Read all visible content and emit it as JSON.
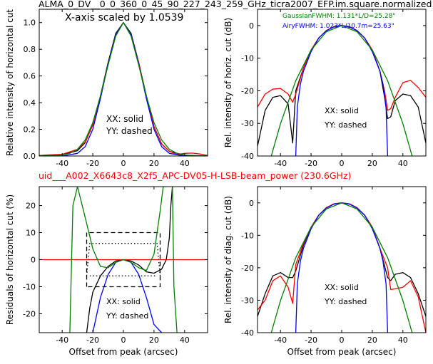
{
  "figure": {
    "title": "ALMA_0_DV__0_0_360_0_45_90_227_243_259_GHz_ticra2007_EFP.im.square.normalized",
    "subtitle": "uid___A002_X6643c8_X2f5_APC-DV05-H-LSB-beam_power (230.6GHz)",
    "subtitle_color": "#ff0000"
  },
  "colors": {
    "black": "#000000",
    "red": "#ff0000",
    "blue": "#0000ff",
    "green": "#008000"
  },
  "chart_data": [
    {
      "id": "p1",
      "type": "line",
      "xlabel": "",
      "ylabel": "Relative intensity of horizontal cut",
      "xlim": [
        -55,
        55
      ],
      "ylim": [
        0,
        1.1
      ],
      "xticks": [
        -40,
        -20,
        0,
        20,
        40
      ],
      "yticks": [
        0.0,
        0.2,
        0.4,
        0.6,
        0.8,
        1.0
      ],
      "ytick_labels": [
        "0.0",
        "0.2",
        "0.4",
        "0.6",
        "0.8",
        "1.0"
      ],
      "annotations": [
        "X-axis scaled by 1.0539",
        "XX: solid",
        "YY: dashed"
      ],
      "series": [
        {
          "color": "#000000",
          "style": "solid",
          "x": [
            -55,
            -50,
            -40,
            -30,
            -25,
            -20,
            -15,
            -10,
            -5,
            0,
            5,
            10,
            15,
            20,
            25,
            30,
            40,
            50,
            55
          ],
          "y": [
            0.0,
            0.002,
            0.008,
            0.04,
            0.1,
            0.235,
            0.45,
            0.7,
            0.92,
            1.0,
            0.92,
            0.7,
            0.45,
            0.22,
            0.09,
            0.035,
            0.006,
            0.002,
            0.0
          ]
        },
        {
          "color": "#ff0000",
          "style": "solid",
          "x": [
            -55,
            -50,
            -40,
            -30,
            -25,
            -20,
            -15,
            -10,
            -5,
            0,
            5,
            10,
            15,
            20,
            25,
            30,
            35,
            40,
            45,
            50,
            55
          ],
          "y": [
            0.004,
            0.008,
            0.013,
            0.05,
            0.105,
            0.23,
            0.44,
            0.69,
            0.91,
            1.0,
            0.91,
            0.7,
            0.44,
            0.22,
            0.09,
            0.035,
            0.012,
            0.02,
            0.022,
            0.015,
            0.005
          ]
        },
        {
          "color": "#0000ff",
          "style": "solid",
          "x": [
            -55,
            -40,
            -30,
            -25,
            -20,
            -15,
            -10,
            -5,
            0,
            5,
            10,
            15,
            20,
            25,
            30,
            40,
            55
          ],
          "y": [
            0.0,
            0.0,
            0.02,
            0.07,
            0.2,
            0.43,
            0.69,
            0.91,
            1.0,
            0.91,
            0.69,
            0.43,
            0.2,
            0.07,
            0.02,
            0.0,
            0.0
          ]
        },
        {
          "color": "#008000",
          "style": "solid",
          "x": [
            -55,
            -45,
            -40,
            -35,
            -30,
            -25,
            -20,
            -15,
            -10,
            -5,
            0,
            5,
            10,
            15,
            20,
            25,
            30,
            35,
            40,
            45,
            55
          ],
          "y": [
            0.0,
            0.004,
            0.008,
            0.02,
            0.05,
            0.12,
            0.25,
            0.45,
            0.68,
            0.9,
            1.0,
            0.9,
            0.68,
            0.45,
            0.25,
            0.12,
            0.05,
            0.02,
            0.008,
            0.004,
            0.0
          ]
        }
      ]
    },
    {
      "id": "p2",
      "type": "line",
      "xlabel": "",
      "ylabel": "Rel. intensity of horiz. cut (dB)",
      "xlim": [
        -55,
        55
      ],
      "ylim": [
        -40,
        5
      ],
      "xticks": [
        -40,
        -20,
        0,
        20,
        40
      ],
      "yticks": [
        -40,
        -30,
        -20,
        -10,
        0
      ],
      "legend": [
        {
          "text": "GaussianFWHM: 1.131*L/D=25.28\"",
          "color": "#008000"
        },
        {
          "text": "AiryFWHM: 1.023*L/10.7m=25.63\"",
          "color": "#0000ff"
        }
      ],
      "legend_placement": "top-right",
      "annotations": [
        "XX: solid",
        "YY: dashed"
      ],
      "series": [
        {
          "color": "#000000",
          "style": "solid",
          "x": [
            -55,
            -50,
            -45,
            -40,
            -35,
            -32,
            -30,
            -25,
            -20,
            -15,
            -10,
            -5,
            0,
            5,
            10,
            15,
            20,
            25,
            28,
            30,
            32,
            35,
            40,
            45,
            50,
            55
          ],
          "y": [
            -37,
            -26,
            -22,
            -21.5,
            -24,
            -36,
            -20,
            -13,
            -7.5,
            -3.8,
            -1.5,
            -0.3,
            0,
            -0.3,
            -1.5,
            -3.8,
            -7.5,
            -14,
            -22,
            -28.5,
            -28,
            -23,
            -21,
            -21.5,
            -25,
            -36
          ]
        },
        {
          "color": "#ff0000",
          "style": "solid",
          "x": [
            -55,
            -50,
            -45,
            -40,
            -35,
            -32,
            -30,
            -25,
            -20,
            -15,
            -10,
            -5,
            0,
            5,
            10,
            15,
            20,
            25,
            28,
            30,
            32,
            35,
            40,
            45,
            50,
            55
          ],
          "y": [
            -25,
            -21,
            -19.5,
            -19.3,
            -21,
            -23.5,
            -21,
            -13,
            -7.5,
            -3.8,
            -1.5,
            -0.3,
            0,
            -0.3,
            -1.5,
            -3.8,
            -7.5,
            -14,
            -20,
            -26,
            -25.5,
            -22,
            -17.5,
            -16.8,
            -19,
            -22
          ]
        },
        {
          "color": "#0000ff",
          "style": "solid",
          "x": [
            -30,
            -29,
            -27,
            -25,
            -20,
            -15,
            -10,
            -5,
            0,
            5,
            10,
            15,
            20,
            25,
            27,
            29,
            30
          ],
          "y": [
            -40,
            -25,
            -18,
            -14,
            -8,
            -3.8,
            -1.6,
            -0.4,
            0,
            -0.4,
            -1.6,
            -3.8,
            -8,
            -14,
            -18,
            -25,
            -40
          ]
        },
        {
          "color": "#008000",
          "style": "solid",
          "x": [
            -46,
            -40,
            -30,
            -20,
            -10,
            0,
            10,
            20,
            30,
            40,
            46
          ],
          "y": [
            -40,
            -30.1,
            -16.9,
            -7.5,
            -1.9,
            0,
            -1.9,
            -7.5,
            -16.9,
            -30.1,
            -40
          ]
        }
      ]
    },
    {
      "id": "p3",
      "type": "line",
      "xlabel": "Offset from peak (arcsec)",
      "ylabel": "Residuals of horizontal cut (%)",
      "xlim": [
        -55,
        55
      ],
      "ylim": [
        -27,
        27
      ],
      "xticks": [
        -40,
        -20,
        0,
        20,
        40
      ],
      "yticks": [
        -20,
        -10,
        0,
        10,
        20
      ],
      "annotations": [
        "XX: solid",
        "YY: dashed"
      ],
      "series": [
        {
          "color": "#000000",
          "style": "solid",
          "x": [
            -24,
            -22,
            -20,
            -15,
            -10,
            -5,
            0,
            5,
            10,
            15,
            20,
            25,
            28,
            30,
            31,
            32
          ],
          "y": [
            -27,
            -18,
            -12,
            -6,
            -2.5,
            -0.5,
            0,
            -0.5,
            -2,
            -4.5,
            -5,
            -3.5,
            0,
            8,
            20,
            27
          ]
        },
        {
          "color": "#000000",
          "style": "dashed",
          "x": [
            -24,
            -24,
            24,
            24,
            -24
          ],
          "y": [
            -10,
            10,
            10,
            -10,
            -10
          ]
        },
        {
          "color": "#000000",
          "style": "dotted",
          "x": [
            -24,
            -22,
            22,
            24
          ],
          "y": [
            -6,
            6,
            6,
            -6
          ]
        },
        {
          "color": "#000000",
          "style": "dotted",
          "x": [
            -22,
            22
          ],
          "y": [
            -6,
            -6
          ]
        },
        {
          "color": "#ff0000",
          "style": "solid",
          "x": [
            -55,
            55
          ],
          "y": [
            0,
            0
          ]
        },
        {
          "color": "#0000ff",
          "style": "solid",
          "x": [
            -20,
            -15,
            -10,
            -5,
            0,
            5,
            10,
            15,
            20,
            25
          ],
          "y": [
            -27,
            -14,
            -5.5,
            -1,
            0,
            -1,
            -5.5,
            -14,
            -24,
            -27
          ]
        },
        {
          "color": "#008000",
          "style": "solid",
          "x": [
            -35,
            -33,
            -30,
            -26,
            -20,
            -15,
            -10,
            -5,
            0,
            5,
            10,
            15,
            20,
            24,
            26,
            28
          ],
          "y": [
            -27,
            20,
            27,
            18,
            4,
            -2.5,
            -3,
            -1,
            0,
            -1,
            -3,
            -4,
            2,
            18,
            27,
            27
          ]
        },
        {
          "color": "#008000",
          "style": "solid",
          "x": [
            32,
            33,
            35
          ],
          "y": [
            27,
            -10,
            -27
          ]
        }
      ]
    },
    {
      "id": "p4",
      "type": "line",
      "xlabel": "Offset from peak (arcsec)",
      "ylabel": "Rel. intensity of diag. cut (dB)",
      "xlim": [
        -55,
        55
      ],
      "ylim": [
        -40,
        5
      ],
      "xticks": [
        -40,
        -20,
        0,
        20,
        40
      ],
      "yticks": [
        -40,
        -30,
        -20,
        -10,
        0
      ],
      "annotations": [
        "XX: solid",
        "YY: dashed"
      ],
      "series": [
        {
          "color": "#000000",
          "style": "solid",
          "x": [
            -55,
            -50,
            -45,
            -40,
            -35,
            -32,
            -30,
            -25,
            -20,
            -15,
            -10,
            -5,
            0,
            5,
            10,
            15,
            20,
            25,
            30,
            32,
            35,
            40,
            45,
            50,
            55
          ],
          "y": [
            -35,
            -28,
            -22.5,
            -21.5,
            -23,
            -23,
            -21,
            -13,
            -7.5,
            -3.8,
            -1.5,
            -0.3,
            0,
            -0.3,
            -1.5,
            -3.8,
            -7.5,
            -14,
            -23,
            -24,
            -22,
            -21.5,
            -23,
            -28,
            -35
          ]
        },
        {
          "color": "#ff0000",
          "style": "solid",
          "x": [
            -55,
            -50,
            -45,
            -40,
            -35,
            -32,
            -30,
            -25,
            -20,
            -15,
            -10,
            -5,
            0,
            5,
            10,
            15,
            20,
            25,
            30,
            32,
            35,
            40,
            45,
            50,
            55
          ],
          "y": [
            -33,
            -30,
            -24,
            -22.5,
            -26,
            -31,
            -19,
            -12.5,
            -7.5,
            -3.8,
            -1.5,
            -0.3,
            0,
            -0.3,
            -1.5,
            -3.8,
            -7.5,
            -14,
            -20,
            -26.7,
            -26.5,
            -26,
            -24,
            -29,
            -40
          ]
        },
        {
          "color": "#0000ff",
          "style": "solid",
          "x": [
            -30,
            -29,
            -27,
            -25,
            -20,
            -15,
            -10,
            -5,
            0,
            5,
            10,
            15,
            20,
            25,
            27,
            29,
            30
          ],
          "y": [
            -40,
            -25,
            -18,
            -14,
            -8,
            -3.8,
            -1.6,
            -0.4,
            0,
            -0.4,
            -1.6,
            -3.8,
            -8,
            -14,
            -18,
            -25,
            -40
          ]
        },
        {
          "color": "#008000",
          "style": "solid",
          "x": [
            -46,
            -40,
            -30,
            -20,
            -10,
            0,
            10,
            20,
            30,
            40,
            46
          ],
          "y": [
            -40,
            -30.1,
            -16.9,
            -7.5,
            -1.9,
            0,
            -1.9,
            -7.5,
            -16.9,
            -30.1,
            -40
          ]
        }
      ]
    }
  ]
}
